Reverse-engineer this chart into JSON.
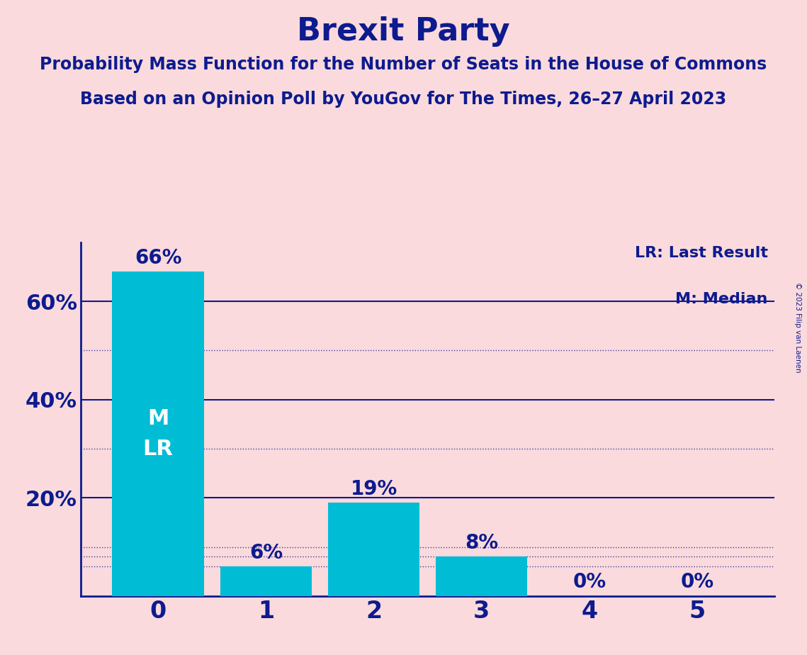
{
  "title": "Brexit Party",
  "subtitle1": "Probability Mass Function for the Number of Seats in the House of Commons",
  "subtitle2": "Based on an Opinion Poll by YouGov for The Times, 26–27 April 2023",
  "copyright": "© 2023 Filip van Laenen",
  "categories": [
    0,
    1,
    2,
    3,
    4,
    5
  ],
  "values": [
    0.66,
    0.06,
    0.19,
    0.08,
    0.0,
    0.0
  ],
  "labels": [
    "66%",
    "6%",
    "19%",
    "8%",
    "0%",
    "0%"
  ],
  "bar_color": "#00BCD4",
  "background_color": "#FADADD",
  "title_color": "#0D1B8E",
  "bar_inside_label_color": "#FFFFFF",
  "axis_color": "#0D1B8E",
  "grid_major_color": "#0D1B8E",
  "grid_minor_color": "#0D1B8E",
  "yticks_major": [
    0.2,
    0.4,
    0.6
  ],
  "ytick_labels": [
    "20%",
    "40%",
    "60%"
  ],
  "ylim": [
    0,
    0.72
  ],
  "grid_major": [
    0.2,
    0.4,
    0.6
  ],
  "grid_minor": [
    0.1,
    0.3,
    0.5
  ],
  "grid_bar_level": [
    0.06,
    0.08
  ],
  "legend_lr": "LR: Last Result",
  "legend_m": "M: Median",
  "title_fontsize": 32,
  "subtitle_fontsize": 17,
  "label_fontsize": 20,
  "ytick_fontsize": 22,
  "xtick_fontsize": 24,
  "inside_label_fontsize": 22,
  "bar_width": 0.85
}
